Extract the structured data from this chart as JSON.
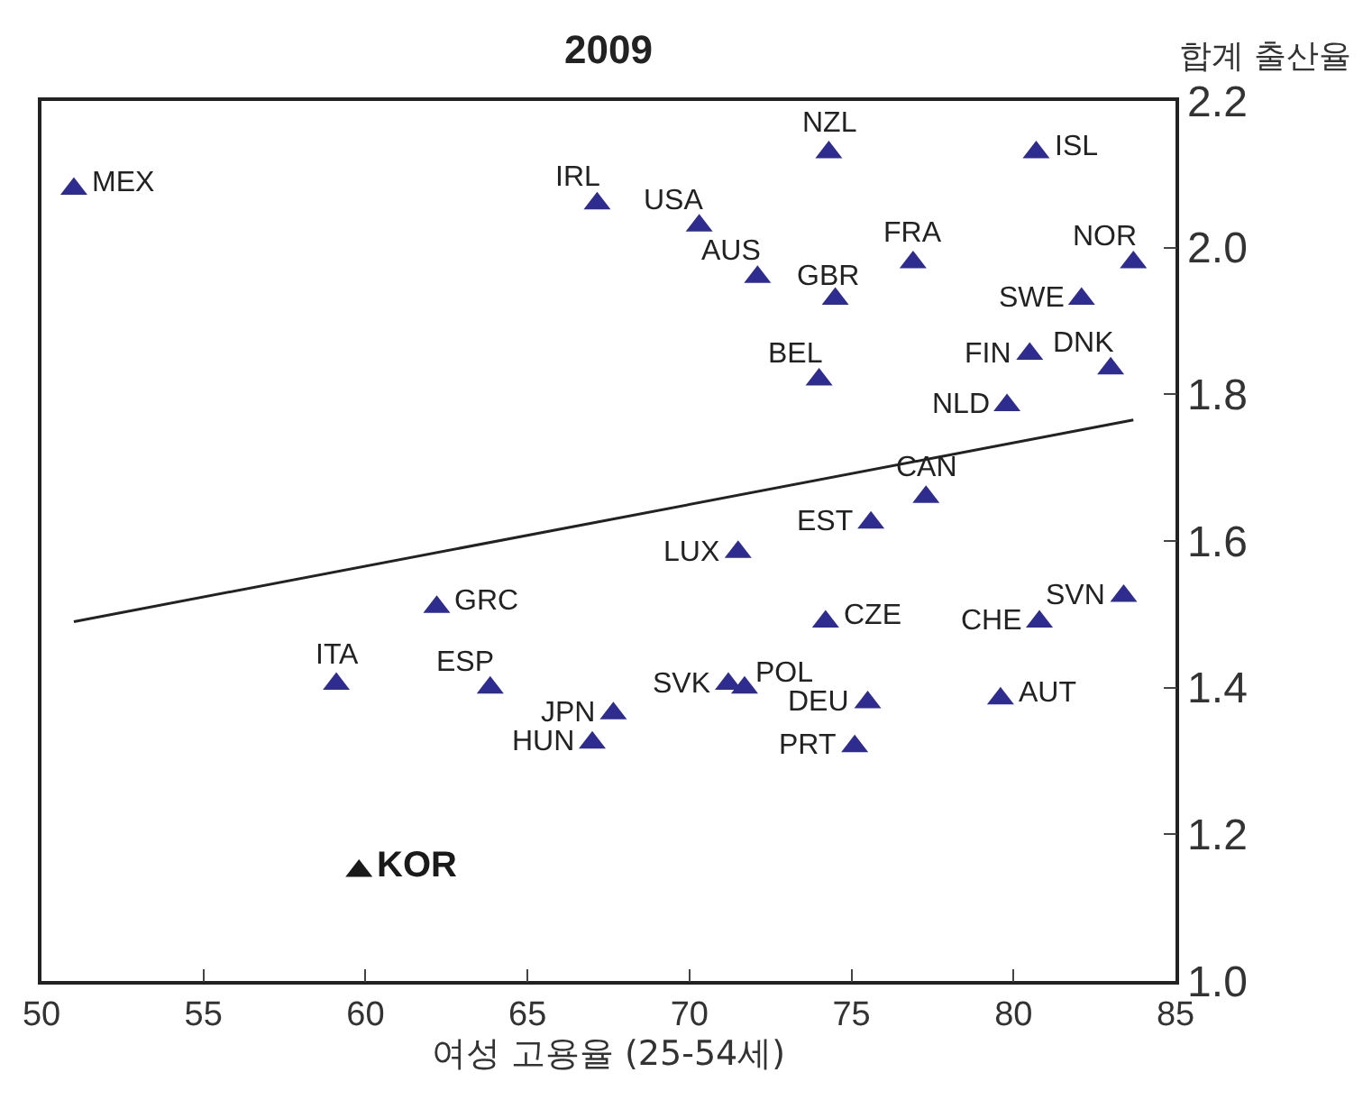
{
  "chart_data": {
    "type": "scatter",
    "title": "2009",
    "xlabel": "여성 고용율 (25-54세)",
    "ylabel": "합계 출산율",
    "xlim": [
      50,
      85
    ],
    "xticks": [
      50,
      55,
      60,
      65,
      70,
      75,
      80,
      85
    ],
    "ylim": [
      1.0,
      2.2
    ],
    "yticks": [
      {
        "value": 1.0,
        "label": "1.0"
      },
      {
        "value": 1.2,
        "label": "1.2"
      },
      {
        "value": 1.4,
        "label": "1.4"
      },
      {
        "value": 1.6,
        "label": "1.6"
      },
      {
        "value": 1.8,
        "label": "1.8"
      },
      {
        "value": 2.0,
        "label": "2.0"
      },
      {
        "value": 2.2,
        "label": "2.2"
      }
    ],
    "marker": "triangle",
    "grid": false,
    "legend": false,
    "series": [
      {
        "color": "#2e2d8f",
        "x": [
          51.0,
          67.15,
          70.3,
          74.3,
          80.7,
          72.1,
          74.5,
          76.9,
          83.7,
          82.1,
          80.5,
          83.0,
          74.0,
          79.8,
          77.3,
          75.6,
          71.5,
          83.4,
          80.8,
          74.2,
          71.2,
          71.7,
          75.5,
          75.1,
          79.6,
          62.2,
          59.1,
          63.85,
          67.65,
          67.0
        ],
        "values": [
          2.08,
          2.06,
          2.03,
          2.13,
          2.13,
          1.96,
          1.93,
          1.98,
          1.98,
          1.93,
          1.855,
          1.835,
          1.82,
          1.785,
          1.66,
          1.625,
          1.585,
          1.525,
          1.49,
          1.49,
          1.405,
          1.4,
          1.38,
          1.32,
          1.385,
          1.51,
          1.405,
          1.4,
          1.365,
          1.325
        ]
      },
      {
        "name": "KOR",
        "color": "#1a1a1a",
        "x": [
          59.8
        ],
        "values": [
          1.15
        ]
      },
      {
        "type": "line",
        "marker": "none",
        "color": "#222222",
        "x": [
          51.0,
          83.7
        ],
        "values": [
          1.49,
          1.765
        ]
      }
    ],
    "annotations": [
      {
        "text": "MEX",
        "x": 51.0,
        "y": 2.08
      },
      {
        "text": "IRL",
        "x": 67.15,
        "y": 2.06
      },
      {
        "text": "USA",
        "x": 70.3,
        "y": 2.03
      },
      {
        "text": "NZL",
        "x": 74.3,
        "y": 2.13
      },
      {
        "text": "ISL",
        "x": 80.7,
        "y": 2.13
      },
      {
        "text": "AUS",
        "x": 72.1,
        "y": 1.96
      },
      {
        "text": "GBR",
        "x": 74.5,
        "y": 1.93
      },
      {
        "text": "FRA",
        "x": 76.9,
        "y": 1.98
      },
      {
        "text": "NOR",
        "x": 83.7,
        "y": 1.98
      },
      {
        "text": "SWE",
        "x": 82.1,
        "y": 1.93
      },
      {
        "text": "FIN",
        "x": 80.5,
        "y": 1.855
      },
      {
        "text": "DNK",
        "x": 83.0,
        "y": 1.835
      },
      {
        "text": "BEL",
        "x": 74.0,
        "y": 1.82
      },
      {
        "text": "NLD",
        "x": 79.8,
        "y": 1.785
      },
      {
        "text": "CAN",
        "x": 77.3,
        "y": 1.66
      },
      {
        "text": "EST",
        "x": 75.6,
        "y": 1.625
      },
      {
        "text": "LUX",
        "x": 71.5,
        "y": 1.585
      },
      {
        "text": "SVN",
        "x": 83.4,
        "y": 1.525
      },
      {
        "text": "CHE",
        "x": 80.8,
        "y": 1.49
      },
      {
        "text": "CZE",
        "x": 74.2,
        "y": 1.49
      },
      {
        "text": "SVK",
        "x": 71.2,
        "y": 1.405
      },
      {
        "text": "POL",
        "x": 71.7,
        "y": 1.4
      },
      {
        "text": "DEU",
        "x": 75.5,
        "y": 1.38
      },
      {
        "text": "PRT",
        "x": 75.1,
        "y": 1.32
      },
      {
        "text": "AUT",
        "x": 79.6,
        "y": 1.385
      },
      {
        "text": "GRC",
        "x": 62.2,
        "y": 1.51
      },
      {
        "text": "ITA",
        "x": 59.1,
        "y": 1.405
      },
      {
        "text": "ESP",
        "x": 63.85,
        "y": 1.4
      },
      {
        "text": "JPN",
        "x": 67.65,
        "y": 1.365
      },
      {
        "text": "HUN",
        "x": 67.0,
        "y": 1.325
      }
    ]
  }
}
